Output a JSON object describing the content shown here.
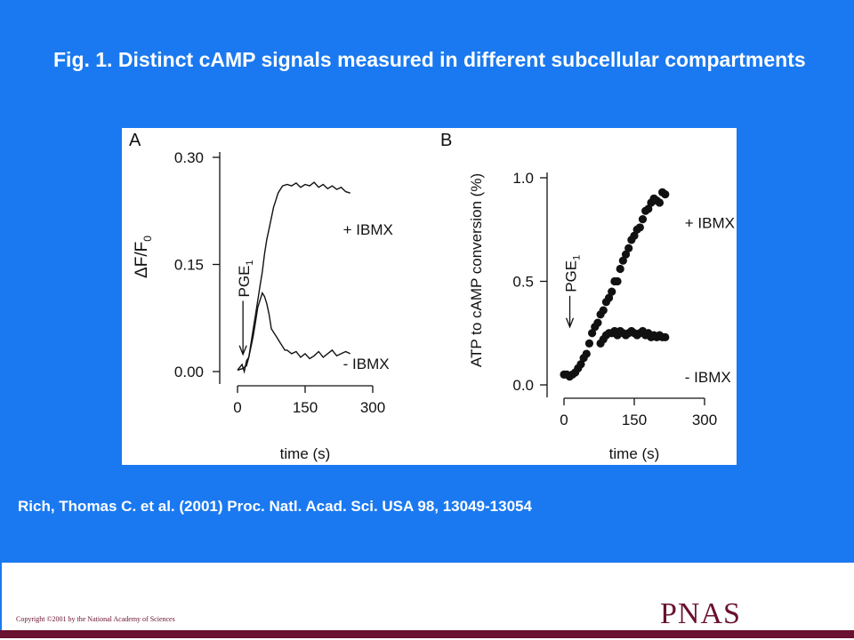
{
  "slide": {
    "title": "Fig. 1.   Distinct cAMP signals measured in different subcellular compartments",
    "citation": "Rich, Thomas C. et al. (2001) Proc. Natl. Acad. Sci. USA 98, 13049-13054",
    "copyright": "Copyright ©2001 by the National Academy of Sciences",
    "publisher_logo": "PNAS",
    "colors": {
      "background": "#1a79f0",
      "brand": "#6a1030",
      "figure_bg": "#ffffff"
    }
  },
  "chart_data": [
    {
      "panel": "A",
      "type": "line",
      "ylabel": "ΔF/F0",
      "xlabel": "time (s)",
      "xlim": [
        0,
        300
      ],
      "ylim": [
        0,
        0.3
      ],
      "xticks": [
        "0",
        "150",
        "300"
      ],
      "yticks": [
        "0.00",
        "0.15",
        "0.30"
      ],
      "stimulus": {
        "label": "PGE1",
        "time": 20
      },
      "series": [
        {
          "name": "+ IBMX",
          "x": [
            0,
            10,
            20,
            25,
            30,
            35,
            40,
            45,
            50,
            55,
            60,
            65,
            70,
            75,
            80,
            85,
            90,
            95,
            100,
            110,
            120,
            130,
            140,
            150,
            160,
            170,
            180,
            190,
            200,
            210,
            220,
            230,
            240,
            250
          ],
          "y": [
            0.002,
            0.004,
            0.008,
            0.02,
            0.04,
            0.06,
            0.08,
            0.1,
            0.12,
            0.14,
            0.165,
            0.185,
            0.2,
            0.215,
            0.23,
            0.24,
            0.25,
            0.255,
            0.26,
            0.262,
            0.26,
            0.264,
            0.258,
            0.262,
            0.26,
            0.265,
            0.258,
            0.262,
            0.256,
            0.26,
            0.255,
            0.258,
            0.252,
            0.25
          ]
        },
        {
          "name": "- IBMX",
          "x": [
            0,
            10,
            15,
            20,
            25,
            30,
            35,
            40,
            45,
            50,
            55,
            60,
            65,
            70,
            75,
            80,
            85,
            90,
            95,
            100,
            105,
            110,
            120,
            130,
            140,
            150,
            160,
            170,
            180,
            190,
            200,
            210,
            220,
            230,
            240,
            250
          ],
          "y": [
            0.002,
            0.01,
            0.0,
            0.015,
            0.02,
            0.035,
            0.05,
            0.07,
            0.09,
            0.1,
            0.11,
            0.105,
            0.095,
            0.08,
            0.06,
            0.055,
            0.05,
            0.045,
            0.04,
            0.035,
            0.03,
            0.03,
            0.025,
            0.028,
            0.02,
            0.025,
            0.018,
            0.022,
            0.028,
            0.02,
            0.025,
            0.03,
            0.022,
            0.025,
            0.028,
            0.025
          ]
        }
      ]
    },
    {
      "panel": "B",
      "type": "scatter",
      "ylabel": "ATP to cAMP conversion (%)",
      "xlabel": "time (s)",
      "xlim": [
        0,
        300
      ],
      "ylim": [
        0,
        1.0
      ],
      "xticks": [
        "0",
        "150",
        "300"
      ],
      "yticks": [
        "0.0",
        "0.5",
        "1.0"
      ],
      "stimulus": {
        "label": "PGE1",
        "time": 20
      },
      "series": [
        {
          "name": "+ IBMX",
          "x": [
            0,
            6,
            12,
            18,
            24,
            30,
            36,
            42,
            48,
            54,
            60,
            66,
            72,
            78,
            84,
            90,
            96,
            102,
            108,
            114,
            120,
            126,
            132,
            138,
            144,
            150,
            156,
            162,
            168,
            174,
            180,
            186,
            192,
            198,
            204,
            210,
            216
          ],
          "y": [
            0.05,
            0.05,
            0.04,
            0.05,
            0.06,
            0.08,
            0.1,
            0.13,
            0.15,
            0.2,
            0.25,
            0.28,
            0.3,
            0.34,
            0.36,
            0.4,
            0.42,
            0.45,
            0.5,
            0.5,
            0.56,
            0.6,
            0.63,
            0.66,
            0.7,
            0.72,
            0.75,
            0.76,
            0.8,
            0.84,
            0.85,
            0.88,
            0.9,
            0.89,
            0.88,
            0.93,
            0.92
          ]
        },
        {
          "name": "- IBMX",
          "x": [
            78,
            84,
            90,
            96,
            102,
            108,
            114,
            120,
            126,
            132,
            138,
            144,
            150,
            156,
            162,
            168,
            174,
            180,
            186,
            192,
            198,
            204,
            210,
            216
          ],
          "y": [
            0.2,
            0.22,
            0.24,
            0.25,
            0.25,
            0.26,
            0.24,
            0.26,
            0.25,
            0.24,
            0.25,
            0.26,
            0.25,
            0.24,
            0.25,
            0.26,
            0.24,
            0.25,
            0.23,
            0.24,
            0.23,
            0.24,
            0.23,
            0.23
          ]
        }
      ]
    }
  ]
}
